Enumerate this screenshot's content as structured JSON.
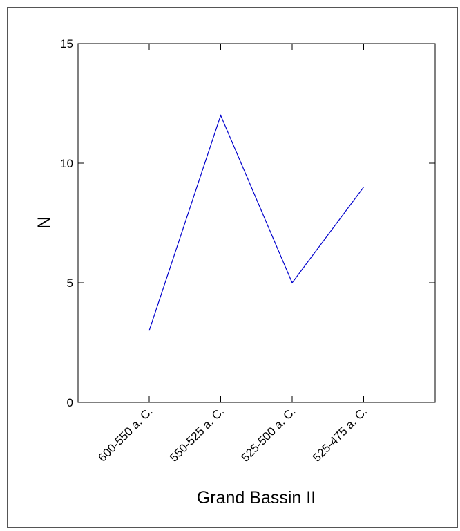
{
  "chart_data": {
    "type": "line",
    "title": "",
    "xlabel": "Grand Bassin II",
    "ylabel": "N",
    "categories": [
      "600-550 a. C.",
      "550-525 a. C.",
      "525-500 a. C.",
      "525-475 a. C."
    ],
    "series": [
      {
        "values": [
          3,
          12,
          5,
          9
        ],
        "color": "#0000cc"
      }
    ],
    "ylim": [
      0,
      15
    ],
    "yticks": [
      "0",
      "5",
      "10",
      "15"
    ],
    "grid": false,
    "legend": "none"
  }
}
